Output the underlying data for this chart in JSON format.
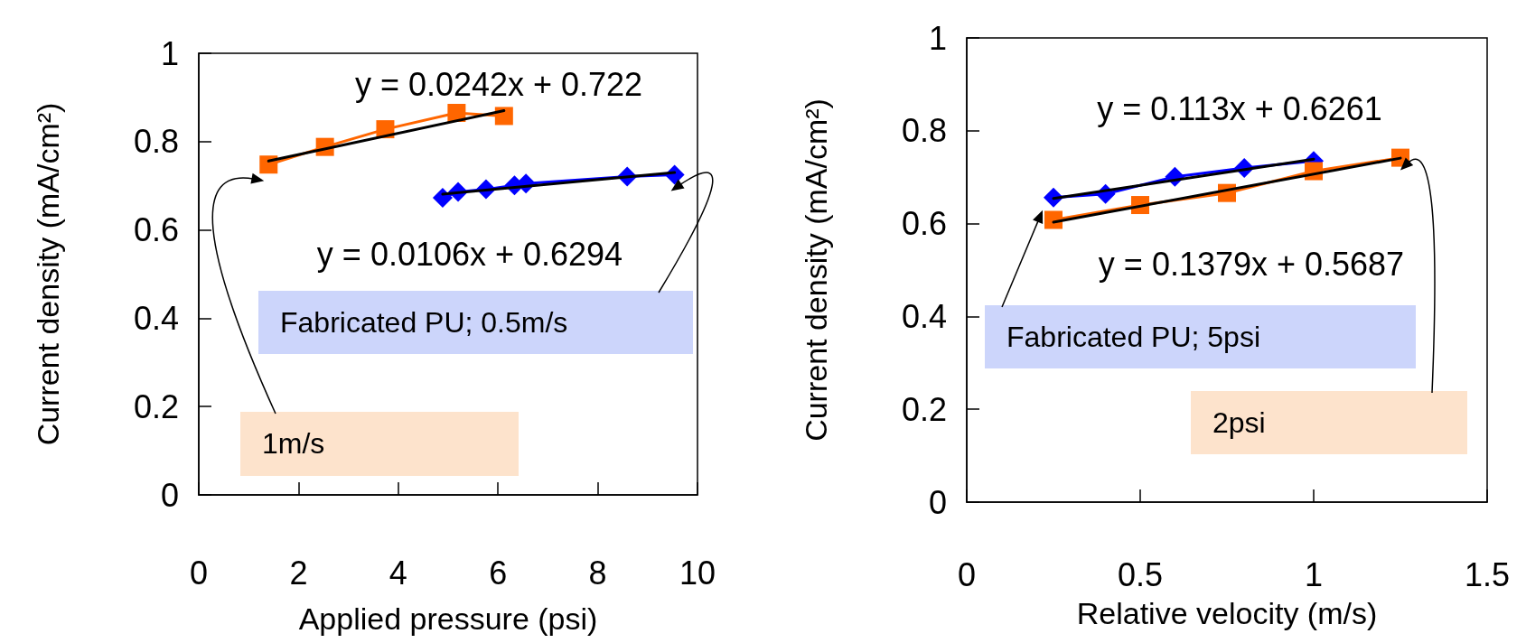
{
  "chart_data": [
    {
      "type": "line",
      "xlabel": "Applied pressure (psi)",
      "ylabel": "Current density (mA/cm²)",
      "xlim": [
        0,
        10
      ],
      "xticks": [
        0,
        2,
        4,
        6,
        8,
        10
      ],
      "ylim": [
        0,
        1
      ],
      "yticks": [
        0,
        0.2,
        0.4,
        0.6,
        0.8,
        1
      ],
      "grid": false,
      "annotations": [
        "y = 0.0242x + 0.722",
        "y = 0.0106x + 0.6294",
        "1m/s",
        "Fabricated PU; 0.5m/s"
      ],
      "series": [
        {
          "color": "#ff6600",
          "marker": "square",
          "x": [
            1.4,
            2.53,
            3.74,
            5.17,
            6.12
          ],
          "values": [
            0.748,
            0.788,
            0.828,
            0.865,
            0.858
          ]
        },
        {
          "color": "#0000ff",
          "marker": "diamond",
          "x": [
            4.89,
            5.2,
            5.76,
            6.33,
            6.56,
            8.59,
            9.54
          ],
          "values": [
            0.673,
            0.686,
            0.692,
            0.701,
            0.705,
            0.721,
            0.725
          ]
        },
        {
          "color": "#000000",
          "marker": "none",
          "x": [
            1.4,
            6.12
          ],
          "values": [
            0.756,
            0.87
          ]
        },
        {
          "color": "#000000",
          "marker": "none",
          "x": [
            4.89,
            9.54
          ],
          "values": [
            0.681,
            0.73
          ]
        }
      ]
    },
    {
      "type": "line",
      "xlabel": "Relative velocity (m/s)",
      "ylabel": "Current density (mA/cm²)",
      "xlim": [
        0,
        1.5
      ],
      "xticks": [
        0,
        0.5,
        1,
        1.5
      ],
      "ylim": [
        0,
        1
      ],
      "yticks": [
        0,
        0.2,
        0.4,
        0.6,
        0.8,
        1
      ],
      "grid": false,
      "annotations": [
        "y = 0.113x + 0.6261",
        "y = 0.1379x + 0.5687",
        "Fabricated PU; 5psi",
        "2psi"
      ],
      "series": [
        {
          "color": "#0000ff",
          "marker": "diamond",
          "x": [
            0.25,
            0.4,
            0.6,
            0.8,
            1.0
          ],
          "values": [
            0.656,
            0.664,
            0.701,
            0.72,
            0.735
          ]
        },
        {
          "color": "#ff6600",
          "marker": "square",
          "x": [
            0.25,
            0.5,
            0.75,
            1.0,
            1.25
          ],
          "values": [
            0.608,
            0.64,
            0.666,
            0.713,
            0.742
          ]
        },
        {
          "color": "#000000",
          "marker": "none",
          "x": [
            0.25,
            1.0
          ],
          "values": [
            0.654,
            0.739
          ]
        },
        {
          "color": "#000000",
          "marker": "none",
          "x": [
            0.25,
            1.25
          ],
          "values": [
            0.603,
            0.741
          ]
        }
      ]
    }
  ]
}
